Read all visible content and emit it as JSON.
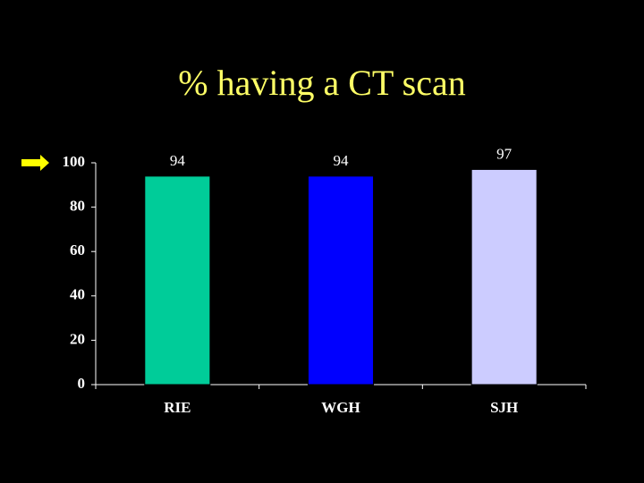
{
  "chart_data": {
    "type": "bar",
    "title": "% having a CT scan",
    "categories": [
      "RIE",
      "WGH",
      "SJH"
    ],
    "values": [
      94,
      94,
      97
    ],
    "colors": [
      "#00cc99",
      "#0000ff",
      "#ccccff"
    ],
    "ylim": [
      0,
      100
    ],
    "yticks": [
      0,
      20,
      40,
      60,
      80,
      100
    ],
    "grid": false
  }
}
